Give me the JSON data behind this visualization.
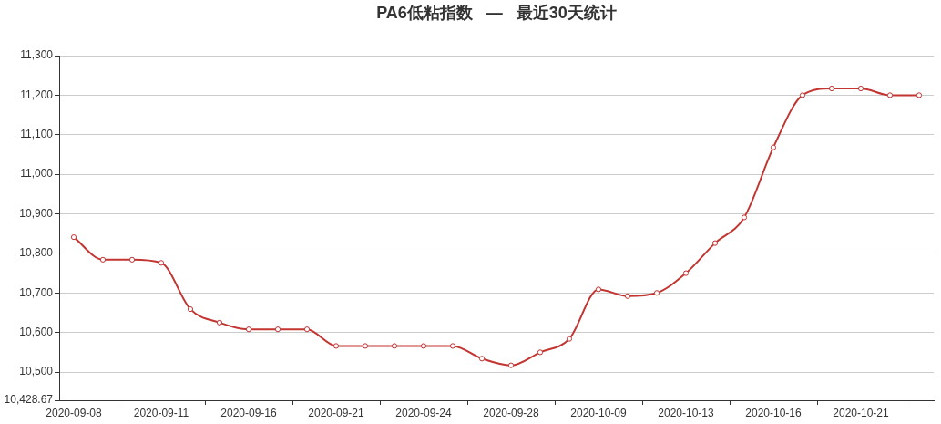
{
  "chart_data": {
    "type": "line",
    "title": "PA6低粘指数   —   最近30天统计",
    "categories": [
      "2020-09-08",
      null,
      null,
      "2020-09-11",
      null,
      null,
      "2020-09-16",
      null,
      null,
      "2020-09-21",
      null,
      null,
      "2020-09-24",
      null,
      null,
      "2020-09-28",
      null,
      null,
      "2020-10-09",
      null,
      null,
      "2020-10-13",
      null,
      null,
      "2020-10-16",
      null,
      null,
      "2020-10-21",
      null,
      null
    ],
    "values": [
      10841,
      10784,
      10784,
      10776,
      10659,
      10625,
      10608,
      10608,
      10608,
      10566,
      10566,
      10566,
      10566,
      10566,
      10534,
      10517,
      10550,
      10584,
      10709,
      10692,
      10700,
      10750,
      10826,
      10891,
      11068,
      11200,
      11217,
      11217,
      11200,
      11200
    ],
    "color": "#c23531",
    "ylim": [
      10428.67,
      11300
    ],
    "yticks": [
      {
        "value": 10428.67,
        "label": "10,428.67"
      },
      {
        "value": 10500,
        "label": "10,500"
      },
      {
        "value": 10600,
        "label": "10,600"
      },
      {
        "value": 10700,
        "label": "10,700"
      },
      {
        "value": 10800,
        "label": "10,800"
      },
      {
        "value": 10900,
        "label": "10,900"
      },
      {
        "value": 11000,
        "label": "11,000"
      },
      {
        "value": 11100,
        "label": "11,100"
      },
      {
        "value": 11200,
        "label": "11,200"
      },
      {
        "value": 11300,
        "label": "11,300"
      }
    ],
    "grid": "y",
    "marker": "circle",
    "line_style": "solid"
  }
}
